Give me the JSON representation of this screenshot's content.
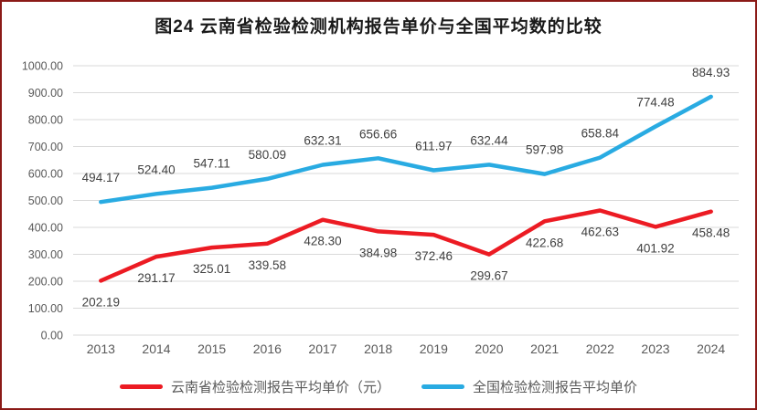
{
  "title": "图24 云南省检验检测机构报告单价与全国平均数的比较",
  "colors": {
    "frame_border": "#8b1a17",
    "gridline": "#d9d9d9",
    "axis_text": "#595959",
    "label_text": "#3f3f3f",
    "yunnan_red": "#ec1b23",
    "national_blue": "#29abe2"
  },
  "chart_data": {
    "type": "line",
    "title": "图24 云南省检验检测机构报告单价与全国平均数的比较",
    "xlabel": "",
    "ylabel": "",
    "grid": true,
    "legend_position": "bottom",
    "categories": [
      "2013",
      "2014",
      "2015",
      "2016",
      "2017",
      "2018",
      "2019",
      "2020",
      "2021",
      "2022",
      "2023",
      "2024"
    ],
    "ylim": [
      0,
      1000
    ],
    "ytick_values": [
      0,
      100,
      200,
      300,
      400,
      500,
      600,
      700,
      800,
      900,
      1000
    ],
    "ytick_labels": [
      "0.00",
      "100.00",
      "200.00",
      "300.00",
      "400.00",
      "500.00",
      "600.00",
      "700.00",
      "800.00",
      "900.00",
      "1000.00"
    ],
    "series": [
      {
        "id": "national",
        "name": "全国检验检测报告平均单价",
        "color": "#29abe2",
        "label_position": "above",
        "values": [
          494.17,
          524.4,
          547.11,
          580.09,
          632.31,
          656.66,
          611.97,
          632.44,
          597.98,
          658.84,
          774.48,
          884.93
        ],
        "labels": [
          "494.17",
          "524.40",
          "547.11",
          "580.09",
          "632.31",
          "656.66",
          "611.97",
          "632.44",
          "597.98",
          "658.84",
          "774.48",
          "884.93"
        ]
      },
      {
        "id": "yunnan",
        "name": "云南省检验检测报告平均单价（元）",
        "color": "#ec1b23",
        "label_position": "below",
        "values": [
          202.19,
          291.17,
          325.01,
          339.58,
          428.3,
          384.98,
          372.46,
          299.67,
          422.68,
          462.63,
          401.92,
          458.48
        ],
        "labels": [
          "202.19",
          "291.17",
          "325.01",
          "339.58",
          "428.30",
          "384.98",
          "372.46",
          "299.67",
          "422.68",
          "462.63",
          "401.92",
          "458.48"
        ]
      }
    ]
  },
  "legend": {
    "items": [
      {
        "label": "云南省检验检测报告平均单价（元）"
      },
      {
        "label": "全国检验检测报告平均单价"
      }
    ]
  }
}
